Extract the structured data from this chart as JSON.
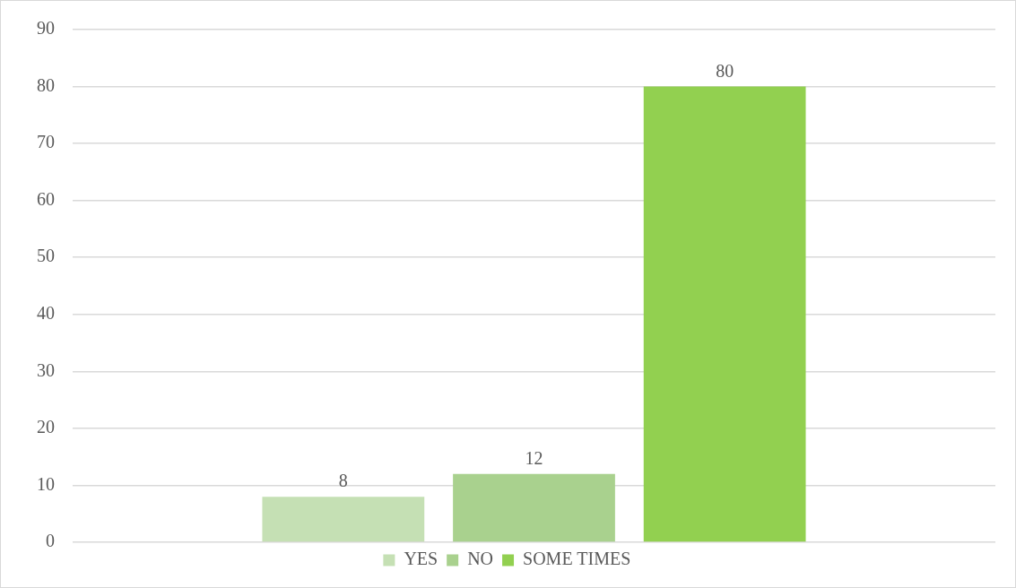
{
  "chart_data": {
    "type": "bar",
    "categories": [
      null
    ],
    "series": [
      {
        "name": "YES",
        "color": "#c5e0b4",
        "values": [
          8
        ]
      },
      {
        "name": "NO",
        "color": "#a9d18e",
        "values": [
          12
        ]
      },
      {
        "name": "SOME TIMES",
        "color": "#92d050",
        "values": [
          80
        ]
      }
    ],
    "ylim": [
      0,
      90
    ],
    "yticks": [
      0,
      10,
      20,
      30,
      40,
      50,
      60,
      70,
      80,
      90
    ],
    "grid": "y",
    "legend": "bottom",
    "data_labels": true
  }
}
